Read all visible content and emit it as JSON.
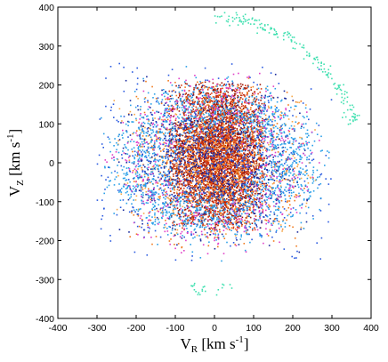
{
  "chart_data": {
    "type": "scatter",
    "title": "",
    "xlabel": {
      "main": "V",
      "sub": "R",
      "unit": " [km s",
      "exp": "-1",
      "close": "]"
    },
    "ylabel": {
      "main": "V",
      "sub": "Z",
      "unit": " [km s",
      "exp": "-1",
      "close": "]"
    },
    "xlim": [
      -400,
      400
    ],
    "ylim": [
      -400,
      400
    ],
    "xticks": [
      -400,
      -300,
      -200,
      -100,
      0,
      100,
      200,
      300,
      400
    ],
    "yticks": [
      -400,
      -300,
      -200,
      -100,
      0,
      100,
      200,
      300,
      400
    ],
    "xtick_labels": [
      "-400",
      "-300",
      "-200",
      "-100",
      "0",
      "100",
      "200",
      "300",
      "400"
    ],
    "ytick_labels": [
      "-400",
      "-300",
      "-200",
      "-100",
      "0",
      "100",
      "200",
      "300",
      "400"
    ],
    "grid": false,
    "legend": "none",
    "colors": {
      "dark_red": "#a01a08",
      "red": "#d83a12",
      "orange": "#f07a1e",
      "light_orange": "#f6a84a",
      "dark_blue": "#1a2a9c",
      "blue": "#2a5ae0",
      "sky_blue": "#2aa0e8",
      "magenta": "#e040c8",
      "cyan": "#40e0b0"
    },
    "series": [
      {
        "color": "dark_red",
        "count": 2600,
        "cx": 10,
        "cy": 20,
        "sx": 65,
        "sy": 100,
        "xr": [
          -115,
          125
        ],
        "yr": [
          -160,
          210
        ]
      },
      {
        "color": "red",
        "count": 1800,
        "cx": 10,
        "cy": 10,
        "sx": 70,
        "sy": 105,
        "xr": [
          -120,
          130
        ],
        "yr": [
          -175,
          200
        ]
      },
      {
        "color": "orange",
        "count": 900,
        "cx": 0,
        "cy": 0,
        "sx": 110,
        "sy": 110,
        "xr": [
          -220,
          230
        ],
        "yr": [
          -220,
          220
        ]
      },
      {
        "color": "light_orange",
        "count": 500,
        "cx": 0,
        "cy": 0,
        "sx": 150,
        "sy": 95,
        "xr": [
          -260,
          260
        ],
        "yr": [
          -200,
          200
        ]
      },
      {
        "color": "dark_blue",
        "count": 900,
        "cx": 0,
        "cy": 0,
        "sx": 110,
        "sy": 95,
        "xr": [
          -250,
          250
        ],
        "yr": [
          -230,
          230
        ]
      },
      {
        "color": "blue",
        "count": 700,
        "cx": 0,
        "cy": 0,
        "sx": 170,
        "sy": 110,
        "xr": [
          -300,
          300
        ],
        "yr": [
          -260,
          260
        ]
      },
      {
        "color": "sky_blue",
        "count": 1500,
        "cx": 0,
        "cy": 0,
        "sx": 220,
        "sy": 120,
        "xr": [
          -340,
          330
        ],
        "yr": [
          -320,
          320
        ],
        "ring": true
      },
      {
        "color": "magenta",
        "count": 500,
        "cx": 0,
        "cy": 0,
        "sx": 200,
        "sy": 140,
        "xr": [
          -280,
          290
        ],
        "yr": [
          -240,
          240
        ],
        "ring": true
      },
      {
        "color": "cyan",
        "count": 200,
        "arc": true,
        "r": 370,
        "a0": 15,
        "a1": 90
      }
    ]
  }
}
